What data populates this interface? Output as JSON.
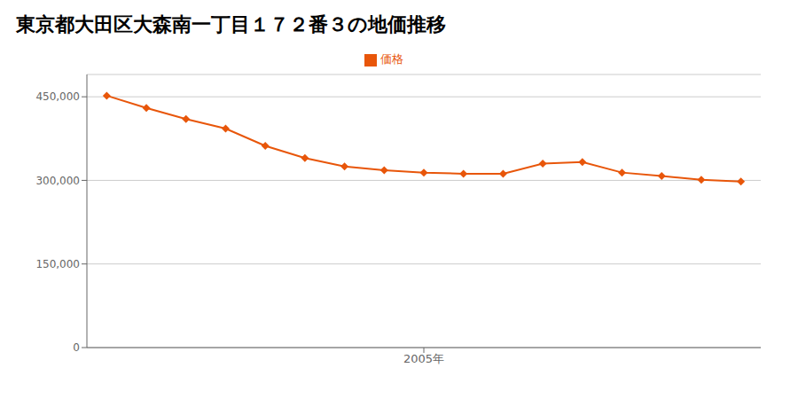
{
  "chart_data": {
    "type": "line",
    "title": "東京都大田区大森南一丁目１７２番３の地価推移",
    "x": [
      1997,
      1998,
      1999,
      2000,
      2001,
      2002,
      2003,
      2004,
      2005,
      2006,
      2007,
      2008,
      2009,
      2010,
      2011,
      2012,
      2013
    ],
    "series": [
      {
        "name": "価格",
        "color": "#e8560a",
        "marker": "diamond",
        "values": [
          452000,
          430000,
          410000,
          393000,
          362000,
          340000,
          325000,
          318000,
          314000,
          312000,
          312000,
          330000,
          333000,
          314000,
          308000,
          301000,
          298000
        ]
      }
    ],
    "xlim": [
      1996.5,
      2013.5
    ],
    "xticks": [
      {
        "value": 2005,
        "label": "2005年"
      }
    ],
    "ylim": [
      0,
      490000
    ],
    "yticks": [
      0,
      {
        "value": 150000,
        "label": "150,000"
      },
      {
        "value": 300000,
        "label": "300,000"
      },
      {
        "value": 450000,
        "label": "450,000"
      }
    ],
    "grid": true,
    "legend": "top"
  }
}
